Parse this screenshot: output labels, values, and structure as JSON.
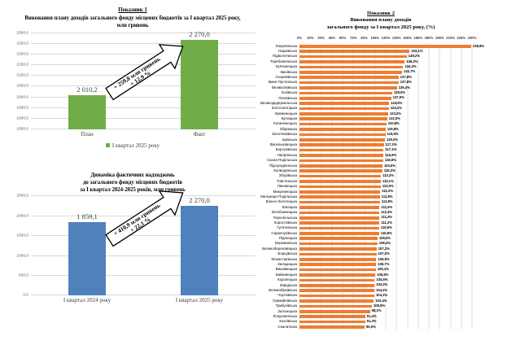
{
  "colors": {
    "green": "#70AD47",
    "blue": "#4F81BD",
    "orange": "#ED7D31",
    "gridline": "#D9D9D9"
  },
  "chart_data": [
    {
      "id": "plan-fact-q1-2025",
      "type": "bar",
      "heading": "Показник 1",
      "title": "Виконання плану доходів загального фонду місцевих бюджетів за І квартал 2025 року, млн гривень",
      "categories": [
        "План",
        "Факт"
      ],
      "values": [
        2010.2,
        2270.0
      ],
      "value_labels": [
        "2 010,2",
        "2 270,0"
      ],
      "ylim": [
        1850,
        2300
      ],
      "yticks": [
        2300,
        2250,
        2200,
        2150,
        2100,
        2050,
        2000,
        1950,
        1900,
        1850
      ],
      "ytick_labels": [
        "2300,0",
        "2250,0",
        "2200,0",
        "2150,0",
        "2100,0",
        "2050,0",
        "2000,0",
        "1950,0",
        "1900,0",
        "1850,0"
      ],
      "bar_color": "#70AD47",
      "grid": true,
      "legend_position": "bottom",
      "legend": [
        {
          "label": "І квартал 2025 року",
          "color": "#70AD47"
        }
      ],
      "annotation": {
        "lines": [
          "+ 259,8 млн гривень",
          "+ 12,9 %"
        ]
      }
    },
    {
      "id": "dynamics-q1-2024-2025",
      "type": "bar",
      "title_lines": [
        "Динаміка фактичних надходжень",
        "до загального фонду місцевих бюджетів",
        "за І квартал 2024-2025 років, млн гривень"
      ],
      "categories": [
        "І квартал 2024 року",
        "І квартал 2025 року"
      ],
      "values": [
        1859.1,
        2270.0
      ],
      "value_labels": [
        "1 859,1",
        "2 270,0"
      ],
      "ylim": [
        0,
        2500
      ],
      "yticks": [
        2500,
        2000,
        1500,
        1000,
        500,
        0
      ],
      "ytick_labels": [
        "2500,0",
        "2000,0",
        "1500,0",
        "1000,0",
        "500,0",
        "0,0"
      ],
      "bar_color": "#4F81BD",
      "grid": true,
      "annotation": {
        "lines": [
          "+ 410,9 млн гривень",
          "+ 22,1 %"
        ]
      }
    },
    {
      "id": "plan-execution-by-hromada",
      "type": "hbar",
      "heading": "Показник 2",
      "title_lines": [
        "Виконання плану доходів",
        "загального фонду за І квартал 2025 року, (%)"
      ],
      "xlim": [
        0,
        240
      ],
      "xtick_labels": [
        "0%",
        "15%",
        "30%",
        "45%",
        "60%",
        "75%",
        "90%",
        "105%",
        "120%",
        "135%",
        "150%",
        "165%",
        "180%",
        "195%",
        "210%",
        "225%",
        "240%"
      ],
      "bar_color": "#ED7D31",
      "grid": true,
      "categories": [
        "Озернянська",
        "Нараївська",
        "Підволочиська",
        "Теребовлянська",
        "Купчинецька",
        "Іванівська",
        "Скориківська",
        "Іване-Пустенська",
        "Великогаївська",
        "Козівська",
        "Почаївська",
        "Великодедеркальська",
        "Золотопотіцька",
        "Кременецька",
        "Бучацька",
        "Копичинецька",
        "Збаразька",
        "Золотниківська",
        "Шумська",
        "Васильковецька",
        "Борсуківська",
        "Нагірянська",
        "Скала-Подільська",
        "Підгородненська",
        "Колиндянська",
        "Зборівська",
        "Товстенська",
        "Лановецька",
        "Микулинецька",
        "Мельнице-Подільська",
        "Більче-Золотецька",
        "Білецька",
        "Білобожницька",
        "Тернопільська",
        "Хоростківська",
        "Гусятинська",
        "Саранчуківська",
        "Підгаєцька",
        "Бережанська",
        "Великоберезовицька",
        "Борщівська",
        "Монастириська",
        "Заліщицька",
        "Вишнівецька",
        "Байковецька",
        "Коропецька",
        "Заводська",
        "Великобірківська",
        "Чортківська",
        "Гримайлівська",
        "Трибухівська",
        "Залозецька",
        "Лопушненська",
        "Козлівська",
        "Скалатська"
      ],
      "values": [
        238.8,
        153.1,
        149.2,
        146.3,
        144.3,
        142.7,
        137.8,
        137.8,
        135.4,
        129.0,
        127.5,
        124.6,
        124.2,
        123.2,
        122.0,
        120.8,
        119.8,
        119.5,
        119.0,
        117.3,
        117.1,
        116.9,
        116.6,
        115.5,
        115.3,
        113.3,
        113.1,
        113.0,
        112.2,
        111.8,
        111.8,
        111.5,
        111.4,
        111.4,
        111.2,
        110.8,
        110.8,
        108.5,
        108.4,
        107.2,
        107.0,
        106.9,
        106.7,
        106.1,
        105.5,
        104.6,
        104.3,
        104.2,
        104.1,
        103.4,
        100.8,
        98.1,
        91.4,
        91.3,
        90.5
      ],
      "value_labels": [
        "238,8%",
        "153,1%",
        "149,2%",
        "146,3%",
        "144,3%",
        "142,7%",
        "137,8%",
        "137,8%",
        "135,4%",
        "129,0%",
        "127,5%",
        "124,6%",
        "124,2%",
        "123,2%",
        "122,0%",
        "120,8%",
        "119,8%",
        "119,5%",
        "119,0%",
        "117,3%",
        "117,1%",
        "116,9%",
        "116,6%",
        "115,5%",
        "115,3%",
        "113,3%",
        "113,1%",
        "113,0%",
        "112,2%",
        "111,8%",
        "111,8%",
        "111,5%",
        "111,4%",
        "111,4%",
        "111,2%",
        "110,8%",
        "110,8%",
        "108,5%",
        "108,4%",
        "107,2%",
        "107,0%",
        "106,9%",
        "106,7%",
        "106,1%",
        "105,5%",
        "104,6%",
        "104,3%",
        "104,2%",
        "104,1%",
        "103,4%",
        "100,8%",
        "98,1%",
        "91,4%",
        "91,3%",
        "90,5%"
      ]
    }
  ]
}
